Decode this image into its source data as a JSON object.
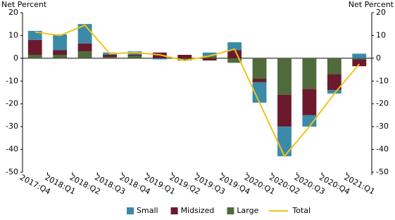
{
  "chart_data": {
    "type": "bar",
    "y_label": "Net Percent",
    "y2_label": "Net Percent",
    "categories": [
      "2017:Q4",
      "2018:Q1",
      "2018:Q2",
      "2018:Q3",
      "2018:Q4",
      "2019:Q1",
      "2019:Q2",
      "2019:Q3",
      "2019:Q4",
      "2020:Q1",
      "2020:Q2",
      "2020:Q3",
      "2020:Q4",
      "2021:Q1"
    ],
    "stacked": true,
    "series": [
      {
        "name": "Small",
        "color": "#3a8aa8",
        "mark": "bar",
        "values": [
          4,
          7,
          8.5,
          1,
          1.5,
          -0.5,
          0,
          1.5,
          3.5,
          -9,
          -13,
          -5,
          -1.5,
          2
        ]
      },
      {
        "name": "Midsized",
        "color": "#6b1a2e",
        "mark": "bar",
        "values": [
          6.5,
          2,
          3.5,
          1,
          0.5,
          2.5,
          1.5,
          -1,
          3.5,
          -1.5,
          -14,
          -11.5,
          -7,
          -3
        ]
      },
      {
        "name": "Large",
        "color": "#4f6b3b",
        "mark": "bar",
        "values": [
          1.5,
          1.5,
          3,
          0.5,
          1,
          0,
          -1,
          1,
          -2,
          -9,
          -16,
          -13.5,
          -7,
          -0.5
        ]
      },
      {
        "name": "Total",
        "color": "#f0c419",
        "mark": "line",
        "values": [
          11.5,
          10,
          14.5,
          2,
          2.5,
          1.5,
          -1,
          1,
          4,
          -19.5,
          -43,
          -30,
          -15.5,
          -2.5
        ]
      }
    ],
    "ylim": [
      -50,
      20
    ],
    "yticks": [
      -50,
      -40,
      -30,
      -20,
      -10,
      0,
      10,
      20
    ],
    "y2lim": [
      -50,
      20
    ],
    "y2ticks": [
      -50,
      -40,
      -30,
      -20,
      -10,
      0,
      10,
      20
    ]
  }
}
